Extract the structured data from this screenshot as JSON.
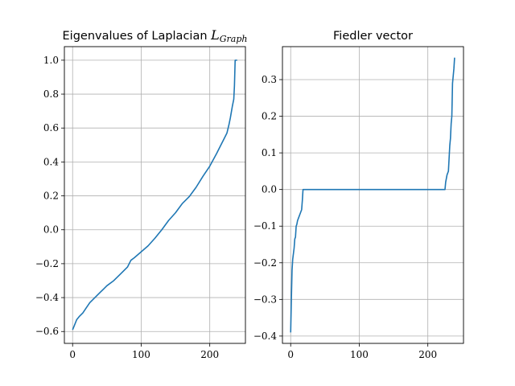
{
  "chart_data": [
    {
      "type": "line",
      "title_text": "Eigenvalues of Laplacian ",
      "title_math": "L",
      "title_math_sub": "Graph",
      "xlabel": "",
      "ylabel": "",
      "xlim": [
        -12,
        252
      ],
      "ylim": [
        -0.67,
        1.08
      ],
      "xticks": [
        0,
        100,
        200
      ],
      "yticks": [
        -0.6,
        -0.4,
        -0.2,
        0.0,
        0.2,
        0.4,
        0.6,
        0.8,
        1.0
      ],
      "ytick_labels": [
        "−0.6",
        "−0.4",
        "−0.2",
        "0.0",
        "0.2",
        "0.4",
        "0.6",
        "0.8",
        "1.0"
      ],
      "grid": true,
      "color": "#1f77b4",
      "series": [
        {
          "x": [
            0,
            2,
            4,
            6,
            10,
            15,
            20,
            25,
            30,
            40,
            50,
            60,
            70,
            80,
            85,
            90,
            100,
            110,
            120,
            130,
            140,
            150,
            160,
            170,
            180,
            190,
            200,
            210,
            215,
            220,
            225,
            228,
            230,
            233,
            234,
            235,
            236,
            237,
            238,
            240
          ],
          "y": [
            -0.59,
            -0.57,
            -0.55,
            -0.53,
            -0.51,
            -0.49,
            -0.46,
            -0.43,
            -0.41,
            -0.37,
            -0.33,
            -0.3,
            -0.26,
            -0.22,
            -0.18,
            -0.165,
            -0.13,
            -0.095,
            -0.05,
            0.0,
            0.055,
            0.1,
            0.155,
            0.195,
            0.25,
            0.315,
            0.375,
            0.45,
            0.49,
            0.53,
            0.57,
            0.62,
            0.66,
            0.73,
            0.75,
            0.77,
            0.85,
            1.0,
            1.0,
            1.0
          ]
        }
      ]
    },
    {
      "type": "line",
      "title_text": "Fiedler vector",
      "xlabel": "",
      "ylabel": "",
      "xlim": [
        -12,
        252
      ],
      "ylim": [
        -0.42,
        0.39
      ],
      "xticks": [
        0,
        100,
        200
      ],
      "yticks": [
        -0.4,
        -0.3,
        -0.2,
        -0.1,
        0.0,
        0.1,
        0.2,
        0.3
      ],
      "ytick_labels": [
        "−0.4",
        "−0.3",
        "−0.2",
        "−0.1",
        "0.0",
        "0.1",
        "0.2",
        "0.3"
      ],
      "grid": true,
      "color": "#1f77b4",
      "series": [
        {
          "x": [
            0,
            1,
            2,
            3,
            4,
            5,
            6,
            7,
            8,
            9,
            10,
            12,
            14,
            16,
            17,
            18,
            19,
            20,
            100,
            200,
            225,
            226,
            228,
            230,
            232,
            233,
            234,
            235,
            236,
            237,
            238,
            239
          ],
          "y": [
            -0.39,
            -0.3,
            -0.22,
            -0.19,
            -0.175,
            -0.16,
            -0.135,
            -0.13,
            -0.1,
            -0.095,
            -0.085,
            -0.075,
            -0.065,
            -0.055,
            -0.03,
            0.0,
            0.0,
            0.0,
            0.0,
            0.0,
            0.0,
            0.02,
            0.04,
            0.05,
            0.12,
            0.14,
            0.18,
            0.2,
            0.29,
            0.31,
            0.33,
            0.36
          ]
        }
      ]
    }
  ]
}
